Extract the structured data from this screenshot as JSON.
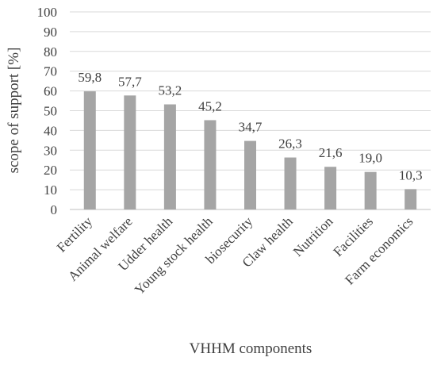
{
  "chart_data": {
    "type": "bar",
    "categories": [
      "Fertility",
      "Animal welfare",
      "Udder health",
      "Young stock health",
      "biosecurity",
      "Claw health",
      "Nutrition",
      "Facilities",
      "Farm economics"
    ],
    "values": [
      59.8,
      57.7,
      53.2,
      45.2,
      34.7,
      26.3,
      21.6,
      19.0,
      10.3
    ],
    "data_labels": [
      "59,8",
      "57,7",
      "53,2",
      "45,2",
      "34,7",
      "26,3",
      "21,6",
      "19,0",
      "10,3"
    ],
    "xlabel": "VHHM components",
    "ylabel": "scope of support [%]",
    "ylim": [
      0,
      100
    ],
    "yticks": [
      0,
      10,
      20,
      30,
      40,
      50,
      60,
      70,
      80,
      90,
      100
    ],
    "grid": true,
    "bar_color": "#a5a5a5",
    "grid_color": "#d9d9d9"
  }
}
